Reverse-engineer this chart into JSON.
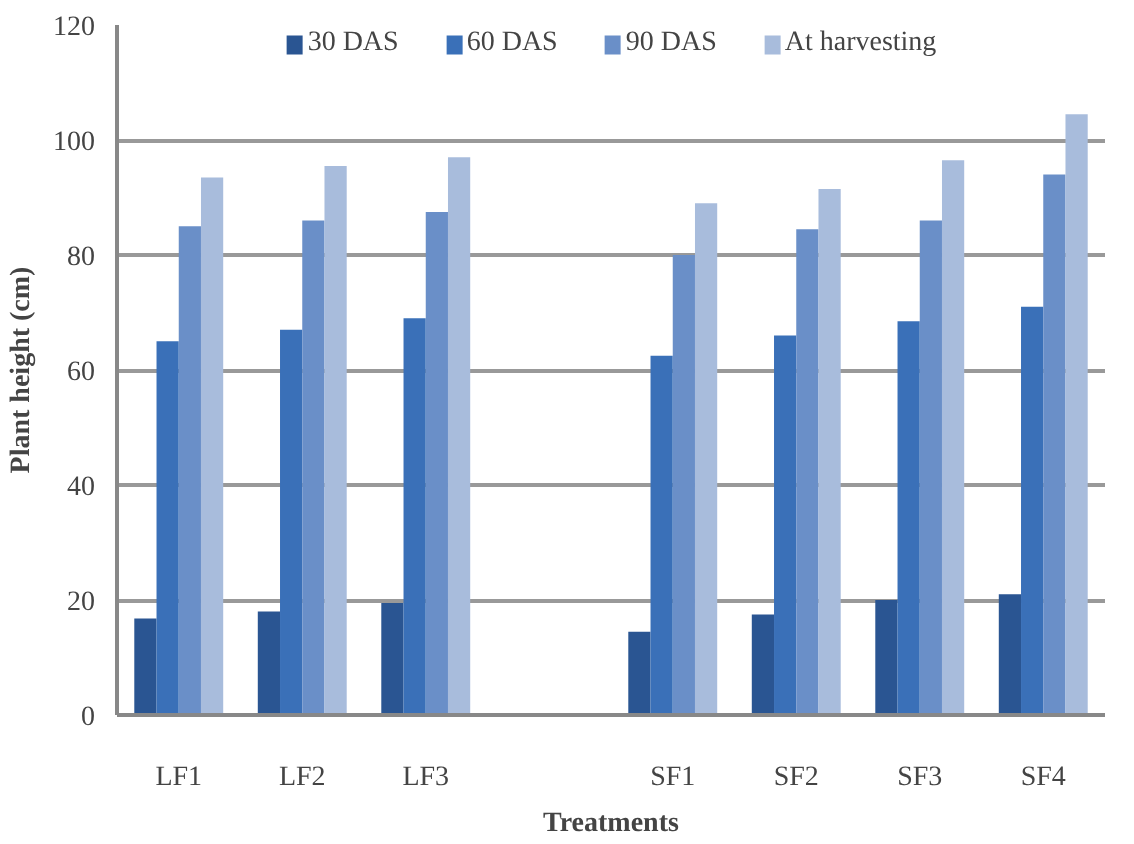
{
  "chart_data": {
    "type": "bar",
    "xlabel": "Treatments",
    "ylabel": "Plant height (cm)",
    "categories": [
      "LF1",
      "LF2",
      "LF3",
      null,
      "SF1",
      "SF2",
      "SF3",
      "SF4"
    ],
    "series": [
      {
        "name": "30 DAS",
        "color": "#2a5592",
        "values": [
          16.8,
          18,
          19.5,
          null,
          14.5,
          17.5,
          20,
          21
        ]
      },
      {
        "name": "60 DAS",
        "color": "#3a70b8",
        "values": [
          65,
          67,
          69,
          null,
          62.5,
          66,
          68.5,
          71
        ]
      },
      {
        "name": "90 DAS",
        "color": "#6a8fc8",
        "values": [
          85,
          86,
          87.5,
          null,
          80,
          84.5,
          86,
          94
        ]
      },
      {
        "name": "At harvesting",
        "color": "#a8bcdc",
        "values": [
          93.5,
          95.5,
          97,
          null,
          89,
          91.5,
          96.5,
          104.5
        ]
      }
    ],
    "ylim": [
      0,
      120
    ],
    "yticks": [
      0,
      20,
      40,
      60,
      80,
      100,
      120
    ],
    "grid": "y",
    "legend": "top"
  }
}
